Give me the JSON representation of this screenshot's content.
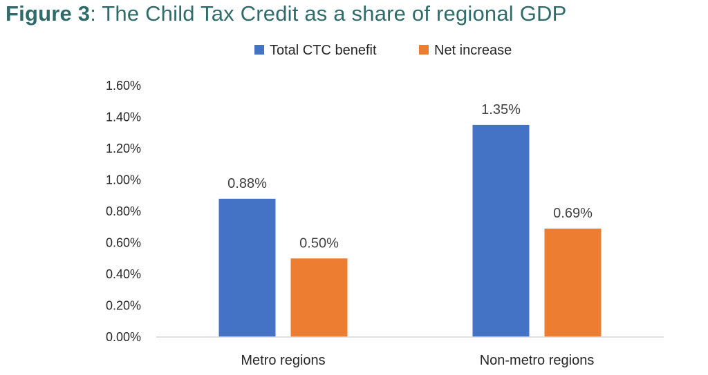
{
  "figure": {
    "label": "Figure 3",
    "separator": ":",
    "title": " The Child Tax Credit as a share of regional GDP"
  },
  "chart_data": {
    "type": "bar",
    "title": "Figure 3: The Child Tax Credit as a share of regional GDP",
    "categories": [
      "Metro regions",
      "Non-metro regions"
    ],
    "series": [
      {
        "name": "Total CTC benefit",
        "values": [
          0.88,
          1.35
        ],
        "labels": [
          "0.88%",
          "1.35%"
        ],
        "color": "#4472c4"
      },
      {
        "name": "Net increase",
        "values": [
          0.5,
          0.69
        ],
        "labels": [
          "0.50%",
          "0.69%"
        ],
        "color": "#ed7d31"
      }
    ],
    "yticks": [
      0,
      0.2,
      0.4,
      0.6,
      0.8,
      1.0,
      1.2,
      1.4,
      1.6
    ],
    "ytick_labels": [
      "0.00%",
      "0.20%",
      "0.40%",
      "0.60%",
      "0.80%",
      "1.00%",
      "1.20%",
      "1.40%",
      "1.60%"
    ],
    "ylim": [
      0,
      1.6
    ],
    "grid": false,
    "legend": "top-center",
    "xlabel": "",
    "ylabel": ""
  }
}
